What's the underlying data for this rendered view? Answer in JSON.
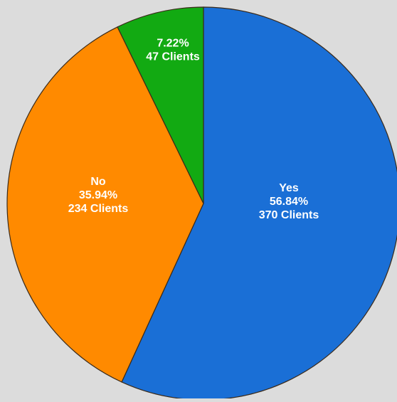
{
  "chart_data": {
    "type": "pie",
    "start_angle_deg": 0,
    "direction": "clockwise",
    "slices": [
      {
        "label": "Yes",
        "percent_text": "56.84%",
        "count_text": "370 Clients",
        "value": 370,
        "percent": 56.84,
        "color": "#1a6fd6"
      },
      {
        "label": "No",
        "percent_text": "35.94%",
        "count_text": "234 Clients",
        "value": 234,
        "percent": 35.94,
        "color": "#ff8a00"
      },
      {
        "label": "",
        "percent_text": "7.22%",
        "count_text": "47 Clients",
        "value": 47,
        "percent": 7.22,
        "color": "#12aa12"
      }
    ]
  }
}
